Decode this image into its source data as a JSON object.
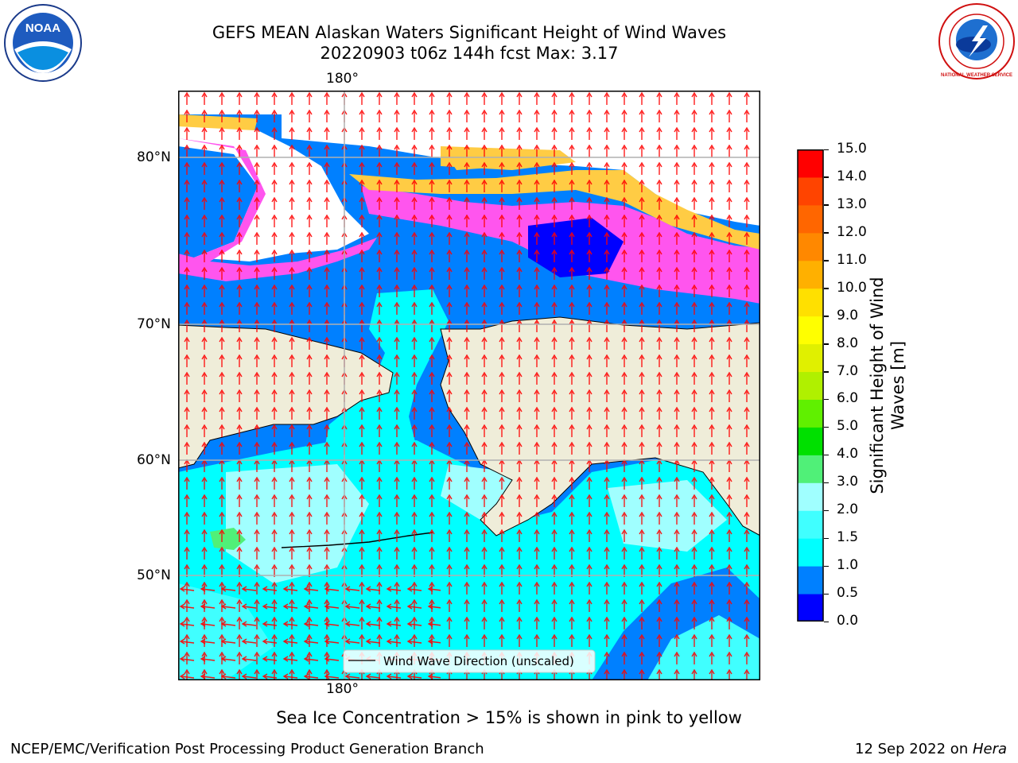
{
  "title_line1": "GEFS MEAN Alaskan Waters Significant Height of Wind Waves",
  "title_line2": "20220903 t06z 144h fcst   Max: 3.17",
  "logos": {
    "left": "NOAA",
    "right": "NATIONAL WEATHER SERVICE"
  },
  "map": {
    "lon_top": "180°",
    "lon_bottom": "180°",
    "lat_labels": [
      "80°N",
      "70°N",
      "60°N",
      "50°N"
    ],
    "legend_label": "Wind Wave Direction (unscaled)",
    "colors": {
      "land": "#efedd9",
      "ice_free": "#ffffff",
      "ice_pink": "#ff66ee",
      "ice_magenta": "#ff33ff",
      "ice_yellow": "#ffcc44",
      "arrow": "#ff0000"
    }
  },
  "colorbar": {
    "label_line1": "Significant Height of Wind",
    "label_line2": "Waves [m]",
    "ticks": [
      "15.0",
      "14.0",
      "13.0",
      "12.0",
      "11.0",
      "10.0",
      "9.0",
      "8.0",
      "7.0",
      "6.0",
      "5.0",
      "4.0",
      "3.0",
      "2.0",
      "1.5",
      "1.0",
      "0.5",
      "0.0"
    ],
    "colors": [
      "#0000ff",
      "#0080ff",
      "#00ffff",
      "#40ffff",
      "#a0ffff",
      "#50f078",
      "#00e000",
      "#60f000",
      "#b0f000",
      "#e0f000",
      "#ffff00",
      "#ffe000",
      "#ffb000",
      "#ff8800",
      "#ff6600",
      "#ff4400",
      "#ff0000"
    ]
  },
  "caption": "Sea Ice Concentration > 15% is shown in pink to yellow",
  "footer_left": "NCEP/EMC/Verification Post Processing Product Generation Branch",
  "footer_right_date": "12 Sep 2022 on ",
  "footer_right_host": "Hera"
}
